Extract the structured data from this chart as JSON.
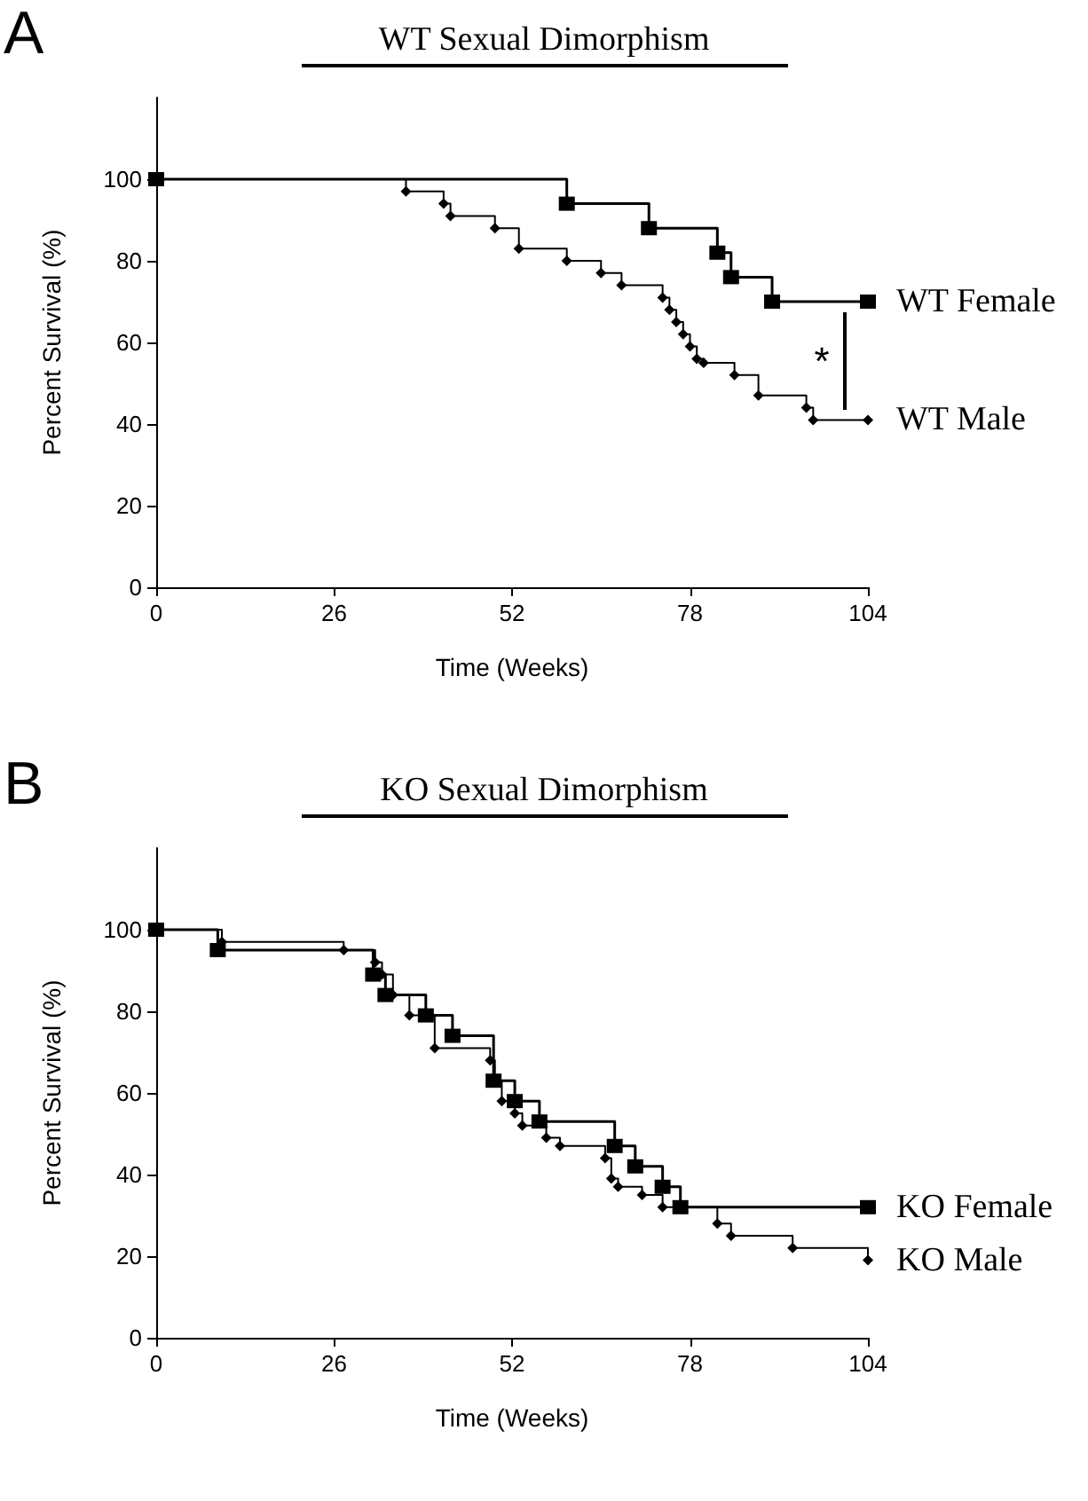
{
  "chart_data": [
    {
      "type": "step",
      "title": "WT Sexual Dimorphism",
      "xlabel": "Time (Weeks)",
      "ylabel": "Percent Survival (%)",
      "xlim": [
        0,
        104
      ],
      "xticks": [
        0,
        26,
        52,
        78,
        104
      ],
      "ylim": [
        0,
        120
      ],
      "yticks": [
        0,
        20,
        40,
        60,
        80,
        100
      ],
      "legend": false,
      "grid": false,
      "annotations": [
        "A",
        "*"
      ],
      "series": [
        {
          "name": "WT Female",
          "color": "#000000",
          "marker": "square",
          "x": [
            0,
            60,
            72,
            82,
            84,
            90,
            104
          ],
          "values": [
            100,
            94,
            88,
            82,
            76,
            70,
            70
          ]
        },
        {
          "name": "WT Male",
          "color": "#000000",
          "marker": "diamond",
          "x": [
            0,
            36.5,
            42,
            43,
            49.5,
            53,
            60,
            65,
            68,
            74,
            75,
            76,
            77,
            78,
            79,
            80,
            84.5,
            88,
            95,
            96,
            104
          ],
          "values": [
            100,
            97,
            94,
            91,
            88,
            83,
            80,
            77,
            74,
            71,
            68,
            65,
            62,
            59,
            56,
            55,
            52,
            47,
            44,
            41,
            41
          ]
        }
      ]
    },
    {
      "type": "step",
      "title": "KO Sexual Dimorphism",
      "xlabel": "Time (Weeks)",
      "ylabel": "Percent Survival (%)",
      "xlim": [
        0,
        104
      ],
      "xticks": [
        0,
        26,
        52,
        78,
        104
      ],
      "ylim": [
        0,
        120
      ],
      "yticks": [
        0,
        20,
        40,
        60,
        80,
        100
      ],
      "legend": false,
      "grid": false,
      "annotations": [
        "B"
      ],
      "series": [
        {
          "name": "KO Female",
          "color": "#000000",
          "marker": "square",
          "x": [
            0,
            9,
            31.7,
            33.5,
            39.4,
            43.3,
            49.3,
            52.4,
            56,
            67,
            70,
            74,
            76.6,
            104
          ],
          "values": [
            100,
            95,
            89,
            84,
            79,
            74,
            63,
            58,
            53,
            47,
            42,
            37,
            32,
            32
          ]
        },
        {
          "name": "KO Male",
          "color": "#000000",
          "marker": "diamond",
          "x": [
            0,
            9.6,
            27.4,
            32,
            33,
            34.6,
            37,
            40.7,
            48.8,
            49.5,
            50.5,
            52.4,
            53.5,
            57,
            59,
            65.6,
            66.5,
            67.5,
            71,
            74,
            82,
            84,
            93,
            104
          ],
          "values": [
            100,
            97,
            95,
            92,
            89,
            84,
            79,
            71,
            68,
            63,
            58,
            55,
            52,
            49,
            47,
            44,
            39,
            37,
            35,
            32,
            28,
            25,
            22,
            19
          ]
        }
      ]
    }
  ]
}
